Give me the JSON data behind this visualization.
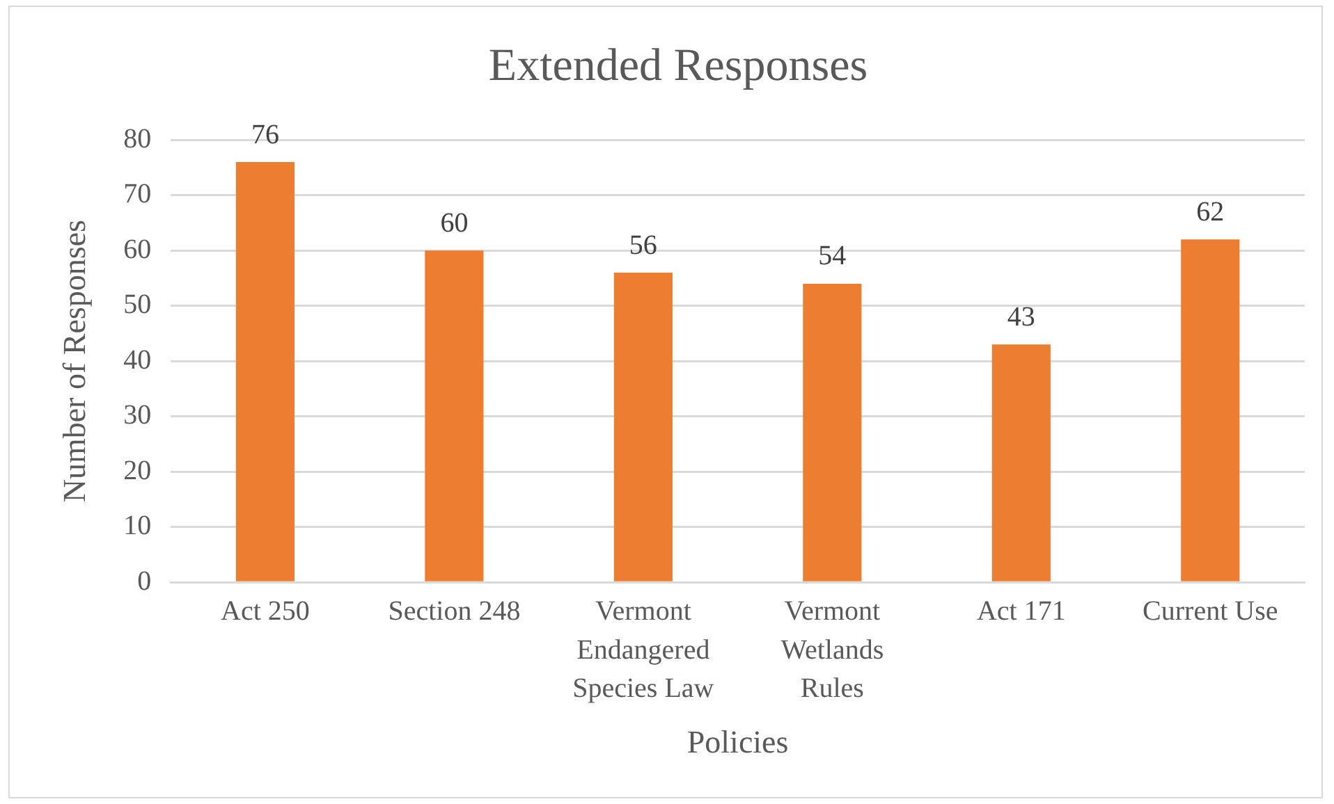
{
  "chart_data": {
    "type": "bar",
    "title": "Extended Responses",
    "xlabel": "Policies",
    "ylabel": "Number of Responses",
    "categories": [
      "Act 250",
      "Section 248",
      "Vermont Endangered Species Law",
      "Vermont Wetlands Rules",
      "Act 171",
      "Current Use"
    ],
    "values": [
      76,
      60,
      56,
      54,
      43,
      62
    ],
    "color": "#ed7d31",
    "ylim": [
      0,
      80
    ],
    "yticks": [
      0,
      10,
      20,
      30,
      40,
      50,
      60,
      70,
      80
    ],
    "grid": "y",
    "data_labels": true
  }
}
